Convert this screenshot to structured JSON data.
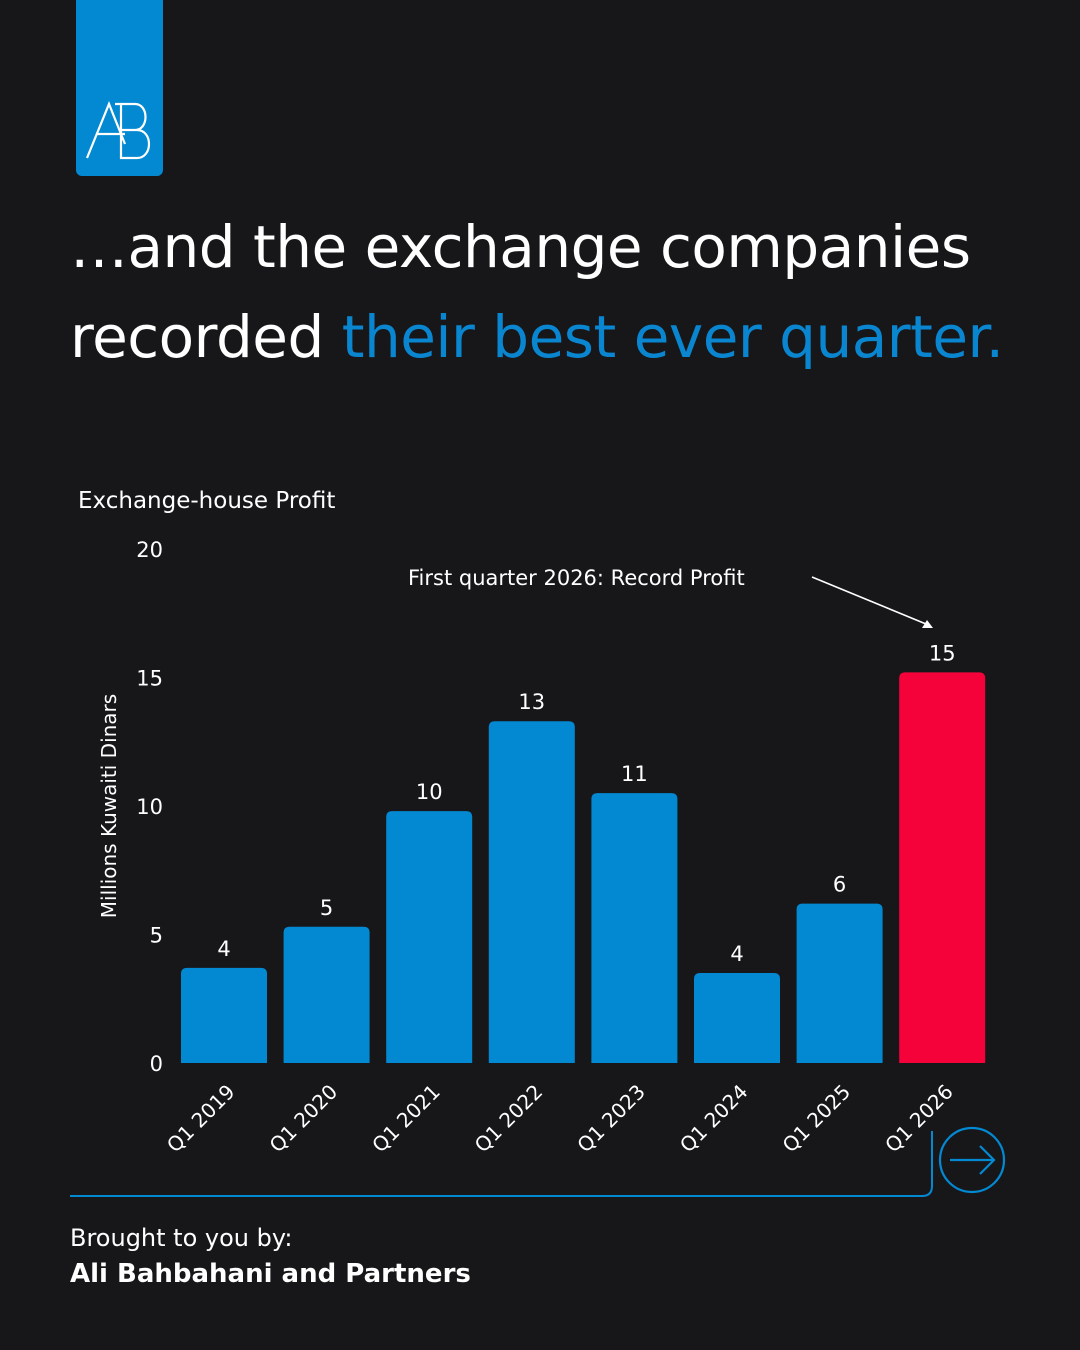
{
  "headline": {
    "line1": "…and the exchange companies",
    "line2_plain": "recorded ",
    "line2_accent": "their best ever quarter."
  },
  "colors": {
    "background": "#17171a",
    "accent": "#0388d2",
    "highlight": "#f5023a",
    "text": "#ffffff"
  },
  "chart_data": {
    "type": "bar",
    "title": "Exchange-house Profit",
    "ylabel": "Millions Kuwaiti Dinars",
    "xlabel": "",
    "categories": [
      "Q1 2019",
      "Q1 2020",
      "Q1 2021",
      "Q1 2022",
      "Q1 2023",
      "Q1 2024",
      "Q1 2025",
      "Q1 2026"
    ],
    "values": [
      3.7,
      5.3,
      9.8,
      13.3,
      10.5,
      3.5,
      6.2,
      15.2
    ],
    "data_labels": [
      "4",
      "5",
      "10",
      "13",
      "11",
      "4",
      "6",
      "15"
    ],
    "highlight_index": 7,
    "ylim": [
      0,
      20
    ],
    "yticks": [
      "0",
      "5",
      "10",
      "15",
      "20"
    ],
    "grid": false,
    "legend": "none",
    "annotation": "First quarter 2026: Record Profit"
  },
  "footer": {
    "lead": "Brought to you by:",
    "brand": "Ali Bahbahani and Partners",
    "next_icon": "arrow-right-circle-icon"
  }
}
